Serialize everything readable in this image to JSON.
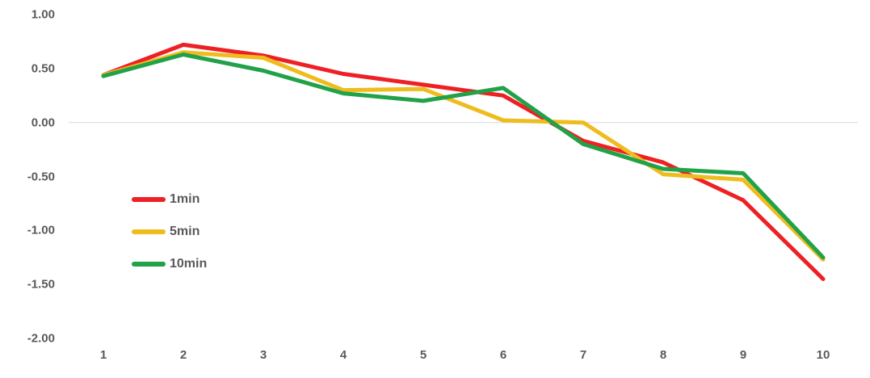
{
  "chart_data": {
    "type": "line",
    "x": [
      1,
      2,
      3,
      4,
      5,
      6,
      7,
      8,
      9,
      10
    ],
    "series": [
      {
        "name": "1min",
        "color": "#ee2024",
        "values": [
          0.44,
          0.72,
          0.62,
          0.45,
          0.35,
          0.25,
          -0.17,
          -0.37,
          -0.72,
          -1.45
        ]
      },
      {
        "name": "5min",
        "color": "#eebc1d",
        "values": [
          0.44,
          0.65,
          0.6,
          0.3,
          0.31,
          0.02,
          0.0,
          -0.48,
          -0.53,
          -1.27
        ]
      },
      {
        "name": "10min",
        "color": "#21a148",
        "values": [
          0.43,
          0.63,
          0.48,
          0.27,
          0.2,
          0.32,
          -0.2,
          -0.43,
          -0.47,
          -1.25
        ]
      }
    ],
    "title": "",
    "xlabel": "",
    "ylabel": "",
    "ylim": [
      -2.0,
      1.0
    ],
    "yticks": [
      1.0,
      0.5,
      0.0,
      -0.5,
      -1.0,
      -1.5,
      -2.0
    ],
    "ytick_labels": [
      "1.00",
      "0.50",
      "0.00",
      "-0.50",
      "-1.00",
      "-1.50",
      "-2.00"
    ],
    "xtick_labels": [
      "1",
      "2",
      "3",
      "4",
      "5",
      "6",
      "7",
      "8",
      "9",
      "10"
    ],
    "grid": "zero-line-only",
    "legend_position": "inside-left",
    "styles": {
      "zero_line_color": "#d9d9d9",
      "axis_label_color": "#595959",
      "background": "#ffffff",
      "line_width": 5
    }
  }
}
